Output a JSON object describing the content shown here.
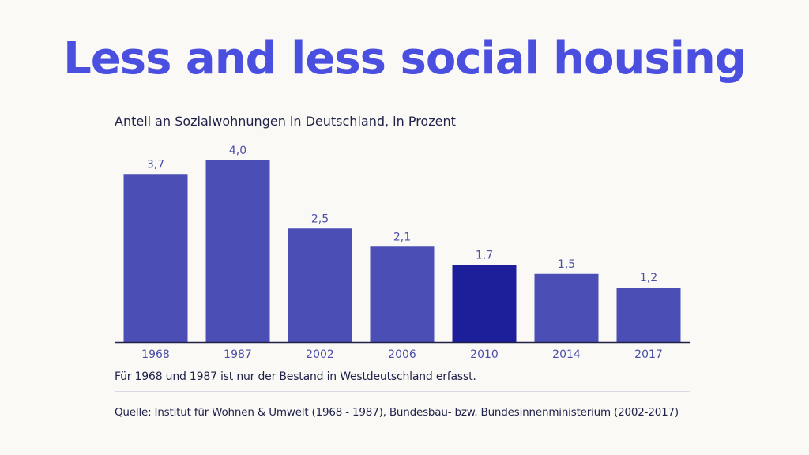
{
  "headline": "Less and less social housing",
  "chart_data": {
    "type": "bar",
    "title": "Anteil an Sozialwohnungen in Deutschland, in Prozent",
    "categories": [
      "1968",
      "1987",
      "2002",
      "2006",
      "2010",
      "2014",
      "2017"
    ],
    "values": [
      3.7,
      4.0,
      2.5,
      2.1,
      1.7,
      1.5,
      1.2
    ],
    "value_labels": [
      "3,7",
      "4,0",
      "2,5",
      "2,1",
      "1,7",
      "1,5",
      "1,2"
    ],
    "highlight_category": "2010",
    "xlabel": "",
    "ylabel": "",
    "ylim": [
      0,
      4.0
    ],
    "grid": false,
    "colors": {
      "bar": "#4b4fb5",
      "highlight": "#1d1e9a",
      "baseline": "#1f2148",
      "label": "#4b4fa8"
    }
  },
  "note": "Für 1968 und 1987 ist nur der Bestand in Westdeutschland erfasst.",
  "source": "Quelle: Institut für Wohnen & Umwelt (1968 - 1987), Bundesbau- bzw. Bundesinnenministerium (2002-2017)"
}
